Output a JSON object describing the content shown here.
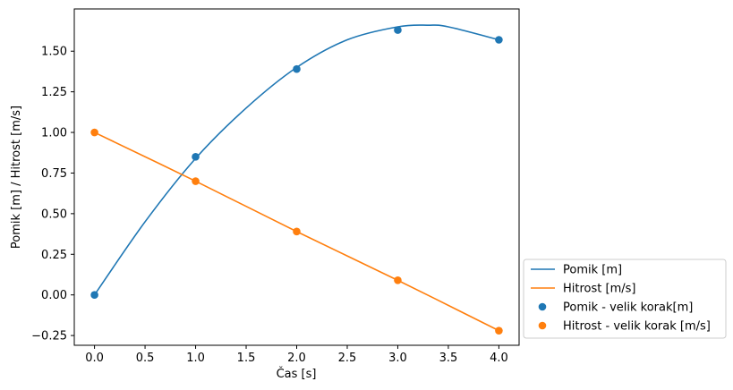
{
  "chart_data": {
    "type": "line",
    "title": "",
    "xlabel": "Čas [s]",
    "ylabel": "Pomik [m] / Hitrost [m/s]",
    "xlim": [
      -0.2,
      4.2
    ],
    "ylim": [
      -0.31,
      1.76
    ],
    "x_ticks": [
      "0.0",
      "0.5",
      "1.0",
      "1.5",
      "2.0",
      "2.5",
      "3.0",
      "3.5",
      "4.0"
    ],
    "y_ticks": [
      "−0.25",
      "0.00",
      "0.25",
      "0.50",
      "0.75",
      "1.00",
      "1.25",
      "1.50"
    ],
    "grid": false,
    "legend_position": "outside-right-bottom",
    "series": [
      {
        "name": "Pomik [m]",
        "style": "line",
        "color": "#1f77b4",
        "x": [
          0.0,
          0.5,
          1.0,
          1.5,
          2.0,
          2.5,
          3.0,
          3.3,
          3.5,
          4.0
        ],
        "y": [
          0.0,
          0.45,
          0.84,
          1.15,
          1.4,
          1.57,
          1.65,
          1.66,
          1.65,
          1.57
        ]
      },
      {
        "name": "Hitrost [m/s]",
        "style": "line",
        "color": "#ff7f0e",
        "x": [
          0.0,
          1.0,
          2.0,
          3.0,
          4.0
        ],
        "y": [
          1.0,
          0.7,
          0.39,
          0.09,
          -0.22
        ]
      },
      {
        "name": "Pomik - velik korak[m]",
        "style": "scatter",
        "color": "#1f77b4",
        "x": [
          0,
          1,
          2,
          3,
          4
        ],
        "y": [
          0.0,
          0.85,
          1.39,
          1.63,
          1.57
        ]
      },
      {
        "name": "Hitrost - velik korak [m/s]",
        "style": "scatter",
        "color": "#ff7f0e",
        "x": [
          0,
          1,
          2,
          3,
          4
        ],
        "y": [
          1.0,
          0.7,
          0.39,
          0.09,
          -0.22
        ]
      }
    ]
  }
}
